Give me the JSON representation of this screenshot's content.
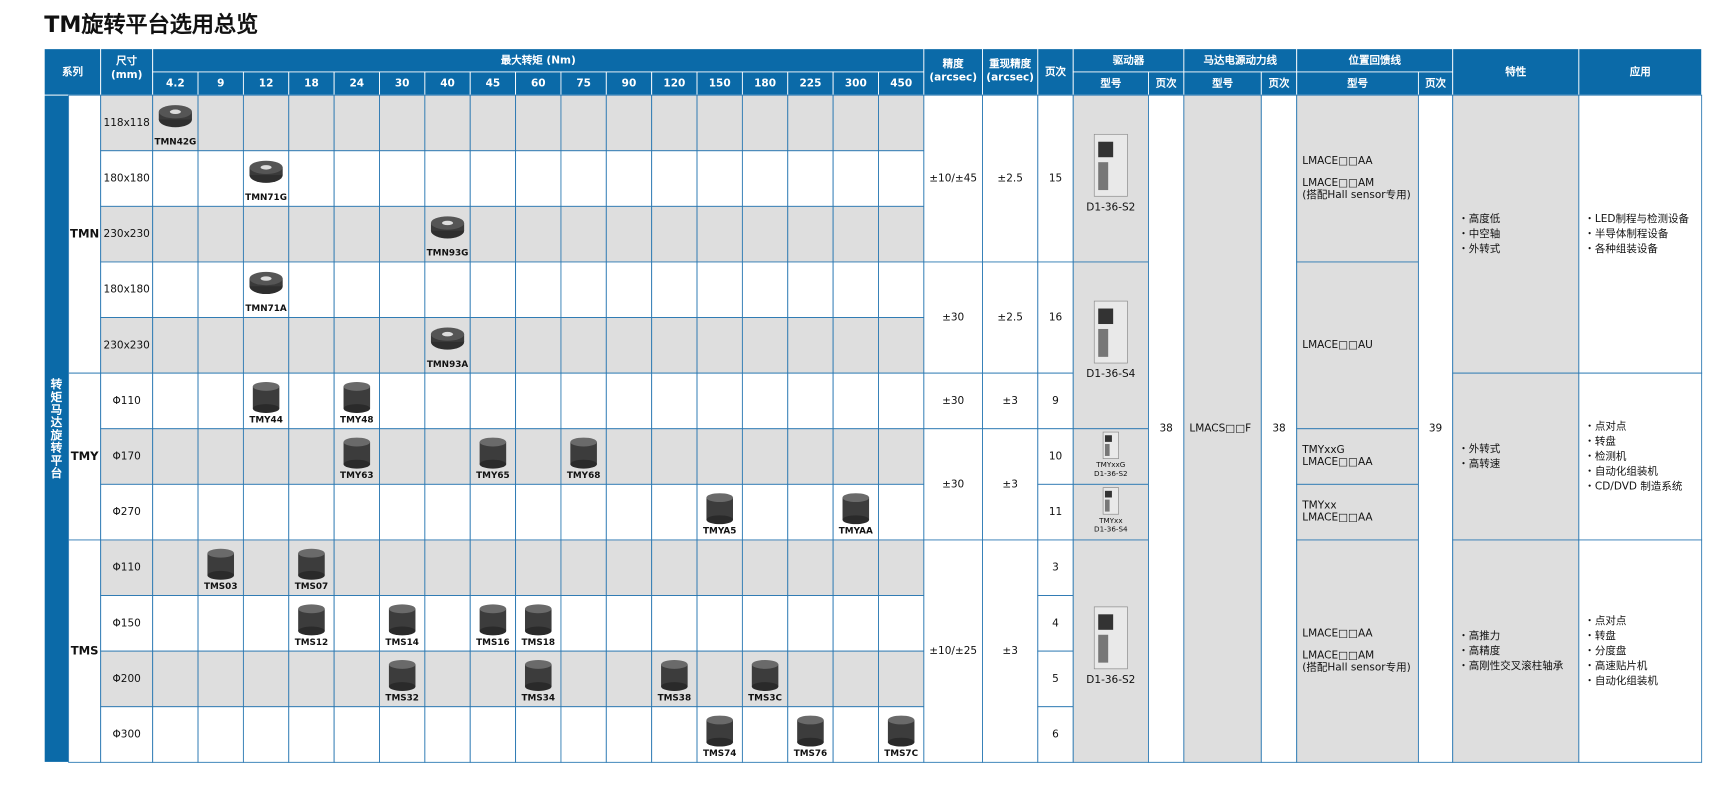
{
  "title": "TM旋转平台选用总览",
  "header": {
    "series": "系列",
    "size": [
      "尺寸",
      "(mm)"
    ],
    "torque": "最大转矩 (Nm)",
    "torque_columns": [
      "4.2",
      "9",
      "12",
      "18",
      "24",
      "30",
      "40",
      "45",
      "60",
      "75",
      "90",
      "120",
      "150",
      "180",
      "225",
      "300",
      "450"
    ],
    "accuracy": [
      "精度",
      "(arcsec)"
    ],
    "repeatability": [
      "重现精度",
      "(arcsec)"
    ],
    "page": "页次",
    "driver": "驱动器",
    "motor_cable": "马达电源动力线",
    "feedback": "位置回馈线",
    "model": "型号",
    "features": "特性",
    "applications": "应用"
  },
  "category": "转矩马达旋转平台",
  "groups": [
    "TMN",
    "TMY",
    "TMS"
  ],
  "rows": [
    {
      "size": "118x118",
      "cells": [
        "TMN42G",
        null,
        null,
        null,
        null,
        null,
        null,
        null,
        null,
        null,
        null,
        null,
        null,
        null,
        null,
        null,
        null
      ]
    },
    {
      "size": "180x180",
      "cells": [
        null,
        null,
        "TMN71G",
        null,
        null,
        null,
        null,
        null,
        null,
        null,
        null,
        null,
        null,
        null,
        null,
        null,
        null
      ]
    },
    {
      "size": "230x230",
      "cells": [
        null,
        null,
        null,
        null,
        null,
        null,
        "TMN93G",
        null,
        null,
        null,
        null,
        null,
        null,
        null,
        null,
        null,
        null
      ]
    },
    {
      "size": "180x180",
      "cells": [
        null,
        null,
        "TMN71A",
        null,
        null,
        null,
        null,
        null,
        null,
        null,
        null,
        null,
        null,
        null,
        null,
        null,
        null
      ]
    },
    {
      "size": "230x230",
      "cells": [
        null,
        null,
        null,
        null,
        null,
        null,
        "TMN93A",
        null,
        null,
        null,
        null,
        null,
        null,
        null,
        null,
        null,
        null
      ]
    },
    {
      "size": "Φ110",
      "cells": [
        null,
        null,
        "TMY44",
        null,
        "TMY48",
        null,
        null,
        null,
        null,
        null,
        null,
        null,
        null,
        null,
        null,
        null,
        null
      ]
    },
    {
      "size": "Φ170",
      "cells": [
        null,
        null,
        null,
        null,
        "TMY63",
        null,
        null,
        "TMY65",
        null,
        "TMY68",
        null,
        null,
        null,
        null,
        null,
        null,
        null
      ]
    },
    {
      "size": "Φ270",
      "cells": [
        null,
        null,
        null,
        null,
        null,
        null,
        null,
        null,
        null,
        null,
        null,
        null,
        "TMYA5",
        null,
        null,
        "TMYAA",
        null
      ]
    },
    {
      "size": "Φ110",
      "cells": [
        null,
        "TMS03",
        null,
        "TMS07",
        null,
        null,
        null,
        null,
        null,
        null,
        null,
        null,
        null,
        null,
        null,
        null,
        null
      ]
    },
    {
      "size": "Φ150",
      "cells": [
        null,
        null,
        null,
        "TMS12",
        null,
        "TMS14",
        null,
        "TMS16",
        "TMS18",
        null,
        null,
        null,
        null,
        null,
        null,
        null,
        null
      ]
    },
    {
      "size": "Φ200",
      "cells": [
        null,
        null,
        null,
        null,
        null,
        "TMS32",
        null,
        null,
        "TMS34",
        null,
        null,
        "TMS38",
        null,
        "TMS3C",
        null,
        null,
        null
      ]
    },
    {
      "size": "Φ300",
      "cells": [
        null,
        null,
        null,
        null,
        null,
        null,
        null,
        null,
        null,
        null,
        null,
        null,
        "TMS74",
        null,
        "TMS76",
        null,
        "TMS7C"
      ]
    }
  ],
  "accuracy": [
    "±10/±45",
    "±30",
    "±30",
    "±30",
    "±10/±25"
  ],
  "repeatability": [
    "±2.5",
    "±2.5",
    "±3",
    "±3",
    "±3"
  ],
  "page": [
    "15",
    "16",
    "9",
    "10",
    "11",
    "3",
    "4",
    "5",
    "6"
  ],
  "driver_model": [
    [
      "D1-36-S2"
    ],
    [
      "D1-36-S4"
    ],
    [
      "TMYxxG",
      "D1-36-S2"
    ],
    [
      "TMYxx",
      "D1-36-S4"
    ],
    [
      "D1-36-S2"
    ]
  ],
  "driver_page": [
    "38"
  ],
  "cable_model": [
    "LMACS□□F"
  ],
  "cable_page": [
    "38"
  ],
  "feedback_model": [
    [
      [
        "LMACE□□AA"
      ],
      [
        "LMACE□□AM",
        "(搭配Hall sensor专用)"
      ]
    ],
    [
      [
        "LMACE□□AU"
      ]
    ],
    [
      [
        "TMYxxG",
        "LMACE□□AA"
      ]
    ],
    [
      [
        "TMYxx",
        "LMACE□□AA"
      ]
    ],
    [
      [
        "LMACE□□AA"
      ],
      [
        "LMACE□□AM",
        "(搭配Hall sensor专用)"
      ]
    ]
  ],
  "feedback_page": [
    "39"
  ],
  "features": [
    [
      "・高度低",
      "・中空轴",
      "・外转式"
    ],
    [
      "・外转式",
      "・高转速"
    ],
    [
      "・高推力",
      "・高精度",
      "・高刚性交叉滚柱轴承"
    ]
  ],
  "applications": [
    [
      "・LED制程与检测设备",
      "・半导体制程设备",
      "・各种组装设备"
    ],
    [
      "・点对点",
      "・转盘",
      "・检测机",
      "・自动化组装机",
      "・CD/DVD 制造系统"
    ],
    [
      "・点对点",
      "・转盘",
      "・分度盘",
      "・高速贴片机",
      "・自动化组装机"
    ]
  ]
}
